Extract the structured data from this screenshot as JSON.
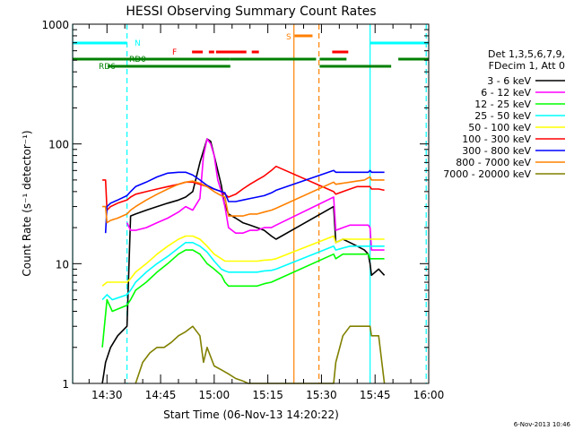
{
  "chart_data": {
    "type": "line",
    "title": "HESSI Observing Summary Count Rates",
    "xlabel": "Start Time (06-Nov-13 14:20:22)",
    "ylabel": "Count Rate (s⁻¹ detector⁻¹)",
    "yscale": "log",
    "ylim": [
      1,
      1000
    ],
    "xlim_minutes": [
      20.4,
      120
    ],
    "x_unit": "minutes after 14:00",
    "x_ticks": [
      {
        "label": "14:30",
        "minute": 30
      },
      {
        "label": "14:45",
        "minute": 45
      },
      {
        "label": "15:00",
        "minute": 60
      },
      {
        "label": "15:15",
        "minute": 75
      },
      {
        "label": "15:30",
        "minute": 90
      },
      {
        "label": "15:45",
        "minute": 105
      },
      {
        "label": "16:00",
        "minute": 120
      }
    ],
    "y_ticks": [
      {
        "label": "1",
        "value": 1
      },
      {
        "label": "10",
        "value": 10
      },
      {
        "label": "100",
        "value": 100
      },
      {
        "label": "1000",
        "value": 1000
      }
    ],
    "legend": {
      "header_lines": [
        "Det 1,3,5,6,7,9,",
        "FDecim 1, Att 0"
      ],
      "placement": "right"
    },
    "series": [
      {
        "name": "3 - 6 keV",
        "color": "#000000",
        "x": [
          28.7,
          29.6,
          31,
          33,
          35.6,
          36.6,
          38,
          41,
          44,
          47,
          50,
          52,
          54,
          56,
          58,
          59,
          60,
          61,
          62,
          62.8,
          64,
          66,
          68,
          70,
          72,
          74,
          76,
          77.3,
          93.4,
          94,
          96,
          98,
          100,
          102,
          103.1,
          103.6,
          104,
          106,
          107.6
        ],
        "y": [
          1,
          1.5,
          2,
          2.5,
          3,
          25,
          26,
          28,
          30,
          32,
          34,
          36,
          40,
          70,
          110,
          105,
          80,
          60,
          45,
          32,
          26,
          24,
          22,
          21,
          20,
          19,
          17,
          16,
          30,
          15,
          16,
          15,
          14,
          13,
          12,
          10,
          8,
          9,
          8
        ]
      },
      {
        "name": "6 - 12 keV",
        "color": "#ff00ff",
        "x": [
          35.6,
          36.6,
          38,
          41,
          44,
          47,
          50,
          52,
          54,
          56,
          57,
          58,
          59,
          60,
          61,
          62,
          63,
          64,
          66,
          68,
          70,
          72,
          74,
          76,
          77.3,
          93.4,
          94,
          96,
          98,
          100,
          102,
          103.1,
          103.6,
          104,
          106,
          107.6
        ],
        "y": [
          22,
          19,
          19,
          20,
          22,
          24,
          27,
          30,
          28,
          35,
          80,
          110,
          100,
          80,
          50,
          40,
          30,
          20,
          18,
          18,
          19,
          19,
          20,
          20,
          21,
          36,
          19,
          20,
          21,
          21,
          21,
          21,
          20,
          13,
          13,
          13
        ]
      },
      {
        "name": "12 - 25 keV",
        "color": "#00ff00",
        "x": [
          28.7,
          30,
          31.5,
          35.6,
          36.6,
          38,
          41,
          44,
          47,
          50,
          52,
          54,
          56,
          58,
          60,
          62,
          63,
          64,
          66,
          68,
          70,
          72,
          74,
          76,
          77.3,
          93.4,
          94,
          96,
          98,
          100,
          102,
          103.1,
          103.6,
          104,
          106,
          107.6
        ],
        "y": [
          2,
          5,
          4,
          4.5,
          5,
          6,
          7,
          8.5,
          10,
          12,
          13,
          13,
          12,
          10,
          9,
          8,
          7,
          6.5,
          6.5,
          6.5,
          6.5,
          6.5,
          6.8,
          7,
          7.3,
          12,
          11,
          12,
          12,
          12,
          12,
          12,
          11,
          11,
          11,
          11
        ]
      },
      {
        "name": "25 - 50 keV",
        "color": "#00ffff",
        "x": [
          28.7,
          30,
          31.5,
          35.6,
          36.6,
          38,
          41,
          44,
          47,
          50,
          52,
          54,
          56,
          58,
          60,
          62,
          63,
          64,
          66,
          68,
          70,
          72,
          74,
          76,
          77.3,
          93.4,
          94,
          96,
          98,
          100,
          102,
          103.1,
          103.6,
          104,
          106,
          107.6
        ],
        "y": [
          5,
          5.5,
          5,
          5.5,
          6,
          7,
          8.5,
          10,
          11.5,
          13.5,
          15,
          15,
          14,
          12.5,
          10.5,
          9,
          8.7,
          8.5,
          8.5,
          8.5,
          8.5,
          8.5,
          8.7,
          8.8,
          9,
          14,
          13,
          13.5,
          14,
          14,
          14,
          14,
          14,
          14,
          14,
          14
        ]
      },
      {
        "name": "50 - 100 keV",
        "color": "#ffff00",
        "x": [
          28.7,
          30,
          31.5,
          35.6,
          36.6,
          38,
          41,
          44,
          47,
          50,
          52,
          54,
          56,
          58,
          60,
          62,
          63,
          64,
          66,
          68,
          70,
          72,
          74,
          76,
          77.3,
          93.4,
          94,
          96,
          98,
          100,
          102,
          103.1,
          103.6,
          104,
          106,
          107.6
        ],
        "y": [
          6.5,
          7,
          7,
          7,
          7.5,
          8.5,
          10,
          12,
          14,
          16,
          17,
          17,
          16,
          14,
          12,
          11,
          10.5,
          10.5,
          10.5,
          10.5,
          10.5,
          10.5,
          10.7,
          10.8,
          11,
          17,
          15,
          16,
          16,
          16,
          16,
          16,
          16,
          16,
          16,
          16
        ]
      },
      {
        "name": "100 - 300 keV",
        "color": "#ff0000",
        "x": [
          28.7,
          29.6,
          30,
          31,
          33,
          35.6,
          36.6,
          38,
          41,
          44,
          47,
          50,
          52,
          54,
          56,
          58,
          60,
          62,
          63,
          64,
          66,
          68,
          70,
          72,
          74,
          76,
          77.3,
          93.4,
          94,
          96,
          98,
          100,
          102,
          103.1,
          103.6,
          104,
          106,
          107.6
        ],
        "y": [
          50,
          50,
          28,
          30,
          32,
          34,
          36,
          38,
          40,
          42,
          44,
          46,
          48,
          48,
          46,
          44,
          42,
          40,
          38,
          36,
          38,
          42,
          46,
          50,
          54,
          60,
          65,
          40,
          38,
          40,
          42,
          44,
          44,
          44,
          44,
          42,
          42,
          41
        ]
      },
      {
        "name": "300 - 800 keV",
        "color": "#0000ff",
        "x": [
          29.6,
          30,
          31,
          33,
          35.6,
          36.6,
          38,
          41,
          44,
          47,
          50,
          52,
          54,
          56,
          58,
          60,
          62,
          63,
          64,
          66,
          68,
          70,
          72,
          74,
          76,
          77.3,
          93.4,
          94,
          96,
          98,
          100,
          102,
          103.1,
          103.6,
          104,
          106,
          107.6
        ],
        "y": [
          18,
          30,
          32,
          34,
          37,
          40,
          44,
          48,
          53,
          57,
          58,
          58,
          55,
          50,
          45,
          42,
          40,
          39,
          33,
          33,
          34,
          35,
          36,
          37,
          39,
          41,
          60,
          58,
          58,
          58,
          58,
          58,
          58,
          60,
          58,
          58,
          58
        ]
      },
      {
        "name": "800 - 7000 keV",
        "color": "#ff8000",
        "x": [
          28.7,
          29.6,
          30,
          31,
          33,
          35.6,
          36.6,
          38,
          41,
          44,
          47,
          50,
          52,
          54,
          56,
          58,
          60,
          62,
          63,
          64,
          66,
          68,
          70,
          72,
          74,
          76,
          77.3,
          93.4,
          94,
          96,
          98,
          100,
          102,
          103.1,
          103.6,
          104,
          106,
          107.6
        ],
        "y": [
          30,
          30,
          22,
          23,
          24,
          26,
          28,
          30,
          34,
          38,
          42,
          46,
          48,
          49,
          47,
          44,
          40,
          37,
          36,
          25,
          25,
          25,
          26,
          26,
          27,
          28,
          29,
          48,
          46,
          47,
          48,
          49,
          50,
          52,
          53,
          50,
          50,
          50
        ]
      },
      {
        "name": "7000 - 20000 keV",
        "color": "#808000",
        "x": [
          38,
          40,
          42,
          44,
          46,
          48,
          50,
          52,
          54,
          56,
          57,
          58,
          60,
          62,
          64,
          66,
          68,
          69.5,
          93.4,
          94,
          96,
          98,
          100,
          102,
          103.1,
          103.6,
          104,
          106,
          107.6
        ],
        "y": [
          1,
          1.5,
          1.8,
          2,
          2,
          2.2,
          2.5,
          2.7,
          3,
          2.5,
          1.5,
          2,
          1.4,
          1.3,
          1.2,
          1.1,
          1.05,
          1,
          1,
          1.5,
          2.5,
          3,
          3,
          3,
          3,
          3,
          2.5,
          2.5,
          1
        ]
      }
    ],
    "annotations": [
      {
        "label": "N",
        "color": "#00ffff"
      },
      {
        "label": "F",
        "color": "#ff0000"
      },
      {
        "label": "S",
        "color": "#ff8000"
      },
      {
        "label": "RD0",
        "color": "#008000"
      },
      {
        "label": "RD6",
        "color": "#008000"
      }
    ],
    "flag_bars": [
      {
        "flag": "N",
        "color": "#00ffff",
        "segments": [
          [
            20.4,
            35.6
          ],
          [
            103.6,
            120
          ]
        ]
      },
      {
        "flag": "F",
        "color": "#ff0000",
        "segments": [
          [
            53.8,
            56.8
          ],
          [
            58.5,
            60
          ],
          [
            60.5,
            69
          ],
          [
            70.5,
            72.5
          ],
          [
            93,
            97.5
          ]
        ]
      },
      {
        "flag": "S",
        "color": "#ff8000",
        "segments": [
          [
            82.5,
            87.5
          ]
        ]
      },
      {
        "flag": "RD0",
        "color": "#008000",
        "segments": [
          [
            20.4,
            64.5
          ],
          [
            64.5,
            88.5
          ],
          [
            89.5,
            97
          ],
          [
            111.5,
            120
          ]
        ]
      },
      {
        "flag": "RD6",
        "color": "#008000",
        "segments": [
          [
            30.2,
            64.5
          ],
          [
            89.5,
            109.5
          ]
        ]
      }
    ],
    "vlines": [
      {
        "minute": 20.4,
        "color": "#00ffff",
        "style": "solid"
      },
      {
        "minute": 35.6,
        "color": "#00ffff",
        "style": "dashed"
      },
      {
        "minute": 103.6,
        "color": "#00ffff",
        "style": "solid"
      },
      {
        "minute": 119.3,
        "color": "#00ffff",
        "style": "dashed"
      },
      {
        "minute": 82.3,
        "color": "#ff8000",
        "style": "solid"
      },
      {
        "minute": 89.3,
        "color": "#ff8000",
        "style": "dashed"
      }
    ]
  },
  "footer_date": "6-Nov-2013 10:46"
}
